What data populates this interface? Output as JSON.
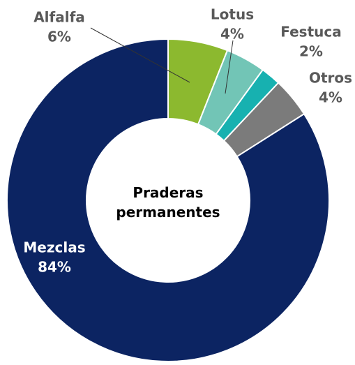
{
  "chart_data": {
    "type": "donut",
    "center_label": "Praderas permanentes",
    "categories": [
      "Alfalfa",
      "Lotus",
      "Festuca",
      "Otros",
      "Mezclas"
    ],
    "values": [
      6,
      4,
      2,
      4,
      84
    ],
    "value_labels": [
      "6%",
      "4%",
      "2%",
      "4%",
      "84%"
    ],
    "colors": [
      "#8cb92f",
      "#72c5b6",
      "#17b1b0",
      "#7b7b7b",
      "#0c2462"
    ]
  }
}
